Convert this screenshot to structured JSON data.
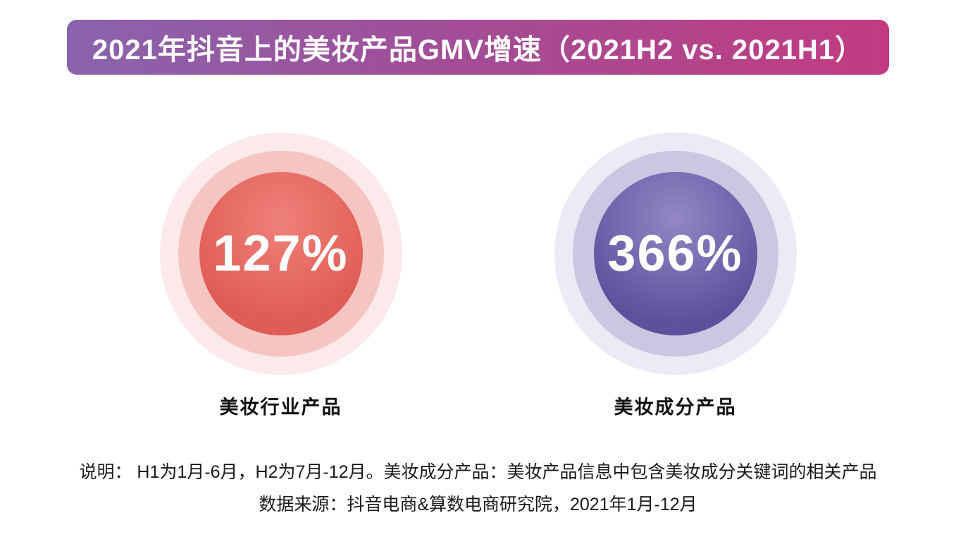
{
  "header": {
    "title": "2021年抖音上的美妆产品GMV增速（2021H2 vs. 2021H1）",
    "gradient_from": "#8a63ad",
    "gradient_to": "#c23b80"
  },
  "kpis": [
    {
      "value": "127%",
      "label": "美妆行业产品",
      "color": "#e0625c"
    },
    {
      "value": "366%",
      "label": "美妆成分产品",
      "color": "#63559e"
    }
  ],
  "notes": {
    "line1": "说明： H1为1月-6月，H2为7月-12月。美妆成分产品：美妆产品信息中包含美妆成分关键词的相关产品",
    "line2": "数据来源：抖音电商&算数电商研究院，2021年1月-12月"
  },
  "chart_data": {
    "type": "bar",
    "variant": "kpi-circles",
    "title": "2021年抖音上的美妆产品GMV增速（2021H2 vs. 2021H1）",
    "categories": [
      "美妆行业产品",
      "美妆成分产品"
    ],
    "values": [
      127,
      366
    ],
    "unit": "%",
    "colors": [
      "#e0625c",
      "#63559e"
    ],
    "note": "说明： H1为1月-6月，H2为7月-12月。美妆成分产品：美妆产品信息中包含美妆成分关键词的相关产品",
    "source": "数据来源：抖音电商&算数电商研究院，2021年1月-12月",
    "legend_position": "none",
    "grid": false
  }
}
